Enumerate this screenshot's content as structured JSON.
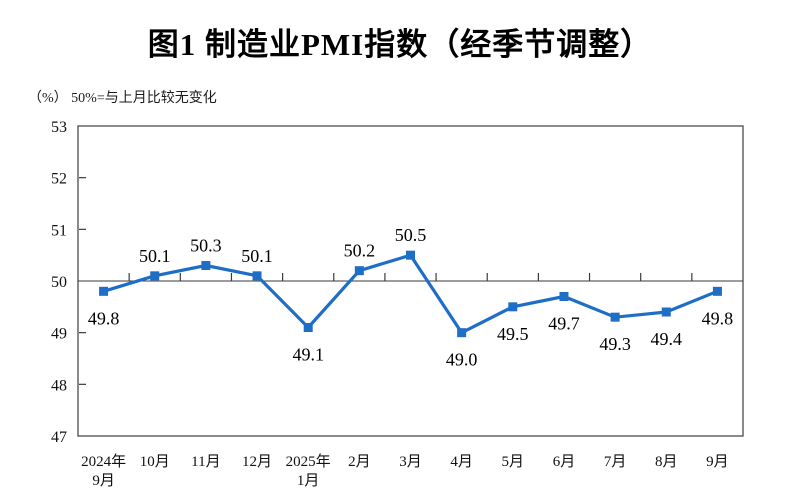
{
  "title": "图1 制造业PMI指数（经季节调整）",
  "subtitle": "（%） 50%=与上月比较无变化",
  "chart_data": {
    "type": "line",
    "title": "图1 制造业PMI指数（经季节调整）",
    "unit_note": "（%） 50%=与上月比较无变化",
    "categories": [
      [
        "2024年",
        "9月"
      ],
      [
        "10月"
      ],
      [
        "11月"
      ],
      [
        "12月"
      ],
      [
        "2025年",
        "1月"
      ],
      [
        "2月"
      ],
      [
        "3月"
      ],
      [
        "4月"
      ],
      [
        "5月"
      ],
      [
        "6月"
      ],
      [
        "7月"
      ],
      [
        "8月"
      ],
      [
        "9月"
      ]
    ],
    "values": [
      49.8,
      50.1,
      50.3,
      50.1,
      49.1,
      50.2,
      50.5,
      49.0,
      49.5,
      49.7,
      49.3,
      49.4,
      49.8
    ],
    "value_label_positions": [
      "below",
      "above",
      "above",
      "above",
      "below",
      "above",
      "above",
      "below",
      "below",
      "below",
      "below",
      "below",
      "below"
    ],
    "ylim": [
      47,
      53
    ],
    "yticks": [
      47,
      48,
      49,
      50,
      51,
      52,
      53
    ],
    "reference_line": 50,
    "grid": false,
    "legend": "none",
    "marker": "square",
    "colors": {
      "line": "#1E6EC8",
      "marker": "#1E6EC8",
      "plot_border": "#595959",
      "reference_line": "#3a3a3a",
      "tick": "#3a3a3a",
      "text": "#111111"
    }
  }
}
